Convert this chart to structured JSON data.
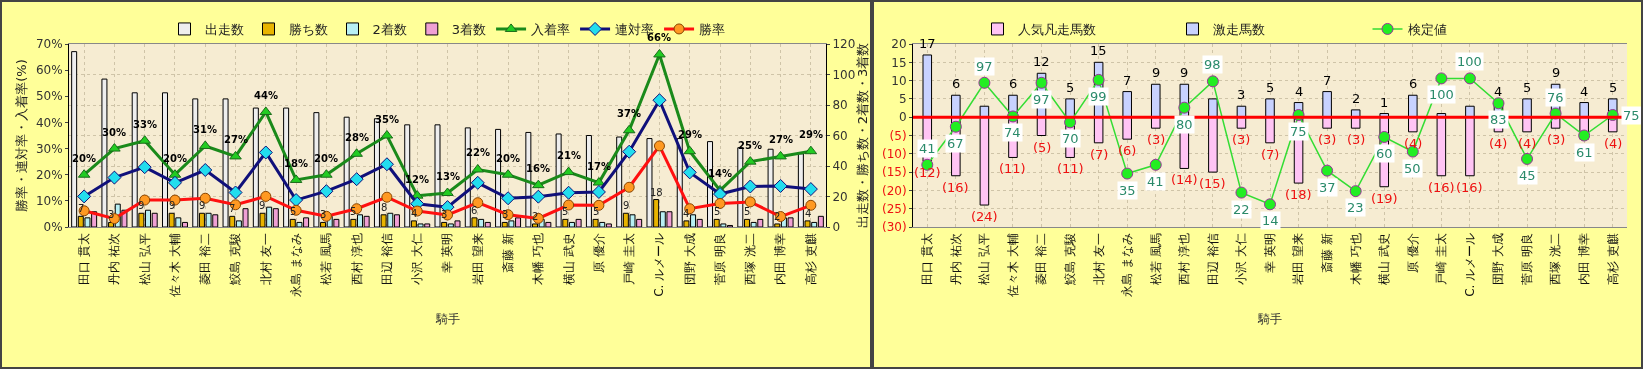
{
  "chart_data": [
    {
      "type": "bar",
      "xlabel": "騎手",
      "ylabel": "勝率・連対率・入着率(%)",
      "y2label": "出走数・勝ち数・2着数・3着数",
      "categories": [
        "田口 貫太",
        "丹内 祐次",
        "松山 弘平",
        "佐々木 大輔",
        "菱田 裕二",
        "鮫島 克駿",
        "北村 友一",
        "永島 まなみ",
        "松若 風馬",
        "西村 淳也",
        "田辺 裕信",
        "小沢 大仁",
        "幸 英明",
        "岩田 望来",
        "斎藤 新",
        "木幡 巧也",
        "横山 武史",
        "原 優介",
        "戸崎 圭太",
        "C. ルメール",
        "団野 大成",
        "菅原 明良",
        "西塚 洸二",
        "内田 博幸",
        "高杉 吏麒"
      ],
      "series": [
        {
          "name": "出走数",
          "color": "#eeeeee",
          "axis": "y2",
          "values": [
            115,
            97,
            88,
            88,
            84,
            84,
            78,
            78,
            75,
            72,
            71,
            67,
            67,
            65,
            64,
            62,
            61,
            60,
            59,
            58,
            58,
            56,
            52,
            51,
            48
          ]
        },
        {
          "name": "勝ち数",
          "color": "#e8b400",
          "axis": "y2",
          "values": [
            7,
            3,
            9,
            9,
            9,
            7,
            9,
            5,
            3,
            5,
            8,
            4,
            3,
            6,
            3,
            2,
            5,
            5,
            9,
            18,
            4,
            5,
            5,
            2,
            4
          ],
          "value_labels": [
            "7",
            "3",
            "9",
            "9",
            "9",
            "7",
            "9",
            "5",
            "3",
            "5",
            "8",
            "4",
            "3",
            "6",
            "3",
            "2",
            "5",
            "5",
            "9",
            "18",
            "4",
            "5",
            "5",
            "2",
            "4"
          ]
        },
        {
          "name": "2着数",
          "color": "#b8f0f4",
          "axis": "y2",
          "values": [
            6,
            15,
            11,
            6,
            9,
            4,
            13,
            3,
            7,
            8,
            9,
            2,
            2,
            5,
            4,
            5,
            3,
            3,
            8,
            10,
            8,
            2,
            3,
            6,
            3
          ]
        },
        {
          "name": "3着数",
          "color": "#f0a0d4",
          "axis": "y2",
          "values": [
            10,
            11,
            9,
            3,
            8,
            12,
            12,
            6,
            5,
            7,
            8,
            2,
            4,
            3,
            6,
            3,
            5,
            2,
            5,
            10,
            5,
            1,
            5,
            6,
            7
          ]
        },
        {
          "name": "入着率",
          "type": "line",
          "color": "#1a8a1a",
          "marker": "triangle",
          "values": [
            20,
            30,
            33,
            20,
            31,
            27,
            44,
            18,
            20,
            28,
            35,
            12,
            13,
            22,
            20,
            16,
            21,
            17,
            37,
            66,
            29,
            14,
            25,
            27,
            29
          ],
          "value_labels": [
            "20%",
            "30%",
            "33%",
            "20%",
            "31%",
            "27%",
            "44%",
            "18%",
            "20%",
            "28%",
            "35%",
            "12%",
            "13%",
            "22%",
            "20%",
            "16%",
            "21%",
            "17%",
            "37%",
            "66%",
            "29%",
            "14%",
            "25%",
            "27%",
            "29%"
          ]
        },
        {
          "name": "連対率",
          "type": "line",
          "color": "#10107a",
          "marker": "diamond",
          "values": [
            11.7,
            18.9,
            22.9,
            16.9,
            21.8,
            13.2,
            28.5,
            10.3,
            13.7,
            18.3,
            24.0,
            8.9,
            7.6,
            16.9,
            11.0,
            11.6,
            13.1,
            13.4,
            28.8,
            48.5,
            20.9,
            12.6,
            15.5,
            15.7,
            14.5
          ]
        },
        {
          "name": "勝率",
          "type": "line",
          "color": "#ff1010",
          "marker": "circle",
          "values": [
            6.2,
            3.2,
            10.3,
            10.3,
            11.0,
            8.5,
            11.7,
            6.4,
            4.1,
            7.0,
            11.4,
            6.1,
            4.6,
            9.3,
            4.7,
            3.3,
            8.4,
            8.3,
            15.2,
            31.0,
            7.0,
            9.0,
            9.6,
            4.0,
            8.3
          ]
        }
      ],
      "ylim": [
        0,
        70
      ],
      "yticks": [
        {
          "value": 0,
          "label": "0%"
        },
        {
          "value": 10,
          "label": "10%"
        },
        {
          "value": 20,
          "label": "20%"
        },
        {
          "value": 30,
          "label": "30%"
        },
        {
          "value": 40,
          "label": "40%"
        },
        {
          "value": 50,
          "label": "50%"
        },
        {
          "value": 60,
          "label": "60%"
        },
        {
          "value": 70,
          "label": "70%"
        }
      ],
      "y2lim": [
        0,
        120
      ],
      "y2ticks": [
        0,
        20,
        40,
        60,
        80,
        100,
        120
      ],
      "grid": true,
      "legend": "top"
    },
    {
      "type": "bar",
      "stacked": true,
      "xlabel": "騎手",
      "categories": [
        "田口 貫太",
        "丹内 祐次",
        "松山 弘平",
        "佐々木 大輔",
        "菱田 裕二",
        "鮫島 克駿",
        "北村 友一",
        "永島 まなみ",
        "松若 風馬",
        "西村 淳也",
        "田辺 裕信",
        "小沢 大仁",
        "幸 英明",
        "岩田 望来",
        "斎藤 新",
        "木幡 巧也",
        "横山 武史",
        "原 優介",
        "戸崎 圭太",
        "C. ルメール",
        "団野 大成",
        "菅原 明良",
        "西塚 洸二",
        "内田 博幸",
        "高杉 吏麒"
      ],
      "series": [
        {
          "name": "人気凡走馬数",
          "color": "#ffc4f4",
          "values": [
            -12,
            -16,
            -24,
            -11,
            -5,
            -11,
            -7,
            -6,
            -3,
            -14,
            -15,
            -3,
            -7,
            -18,
            -3,
            -3,
            -19,
            -4,
            -16,
            -16,
            -4,
            -4,
            -3,
            -6,
            -4
          ],
          "value_labels": [
            "(12)",
            "(16)",
            "(24)",
            "(11)",
            "(5)",
            "(11)",
            "(7)",
            "(6)",
            "(3)",
            "(14)",
            "(15)",
            "(3)",
            "(7)",
            "(18)",
            "(3)",
            "(3)",
            "(19)",
            "(4)",
            "(16)",
            "(16)",
            "(4)",
            "(4)",
            "(3)",
            null,
            "(4)"
          ]
        },
        {
          "name": "激走馬数",
          "color": "#c8d2ff",
          "values": [
            17,
            6,
            3,
            6,
            12,
            5,
            15,
            7,
            9,
            9,
            5,
            3,
            5,
            4,
            7,
            2,
            1,
            6,
            1,
            3,
            4,
            5,
            9,
            4,
            5
          ],
          "value_labels": [
            "17",
            "6",
            null,
            "6",
            "12",
            "5",
            "15",
            "7",
            "9",
            "9",
            null,
            "3",
            "5",
            "4",
            "7",
            "2",
            "1",
            "6",
            null,
            null,
            "4",
            "5",
            "9",
            "4",
            "5"
          ]
        },
        {
          "name": "検定値",
          "type": "line",
          "axis": "y2",
          "color": "#33dd33",
          "marker": "circle",
          "values": [
            41,
            67,
            97,
            74,
            97,
            70,
            99,
            35,
            41,
            80,
            98,
            22,
            14,
            75,
            37,
            23,
            60,
            50,
            100,
            100,
            83,
            45,
            76,
            61,
            75
          ],
          "value_labels": [
            "41",
            "67",
            "97",
            "74",
            "97",
            "70",
            "99",
            "35",
            "41",
            "80",
            "98",
            "22",
            "14",
            "75",
            "37",
            "23",
            "60",
            "50",
            "100",
            "100",
            "83",
            "45",
            "76",
            "61",
            "75"
          ]
        }
      ],
      "ylim": [
        -30,
        20
      ],
      "yticks": [
        {
          "value": 20,
          "label": "20"
        },
        {
          "value": 15,
          "label": "15"
        },
        {
          "value": 10,
          "label": "10"
        },
        {
          "value": 5,
          "label": "5"
        },
        {
          "value": 0,
          "label": "0"
        },
        {
          "value": -5,
          "label": "(5)"
        },
        {
          "value": -10,
          "label": "(10)"
        },
        {
          "value": -15,
          "label": "(15)"
        },
        {
          "value": -20,
          "label": "(20)"
        },
        {
          "value": -25,
          "label": "(25)"
        },
        {
          "value": -30,
          "label": "(30)"
        }
      ],
      "y2lim": [
        -1.5,
        123.5
      ],
      "ref_lines": [
        {
          "axis": "y",
          "value": 0,
          "color": "#ff0000"
        }
      ],
      "grid": true,
      "legend": "top"
    }
  ]
}
